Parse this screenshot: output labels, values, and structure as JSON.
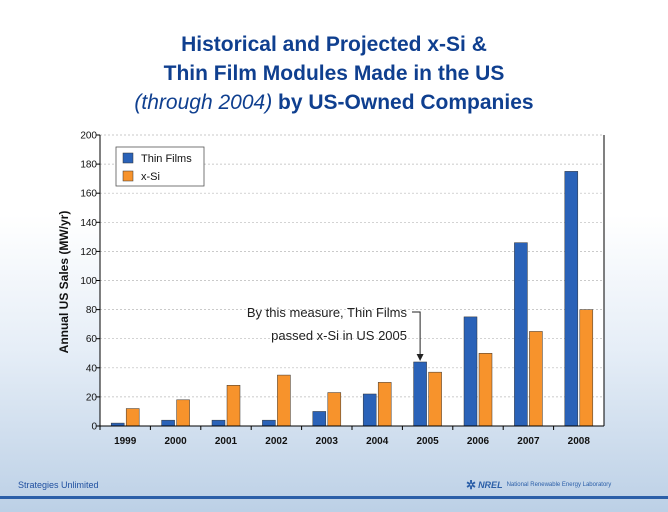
{
  "title": {
    "line1": "Historical and Projected x-Si &",
    "line2": "Thin Film Modules Made in the US",
    "line3_italic": "(through 2004)",
    "line3_rest": " by US-Owned Companies"
  },
  "chart_data": {
    "type": "bar",
    "categories": [
      "1999",
      "2000",
      "2001",
      "2002",
      "2003",
      "2004",
      "2005",
      "2006",
      "2007",
      "2008"
    ],
    "series": [
      {
        "name": "Thin Films",
        "color": "#2a62b8",
        "values": [
          2,
          4,
          4,
          4,
          10,
          22,
          44,
          75,
          126,
          175
        ]
      },
      {
        "name": "x-Si",
        "color": "#f7932c",
        "values": [
          12,
          18,
          28,
          35,
          23,
          30,
          37,
          50,
          65,
          80
        ]
      }
    ],
    "ylabel": "Annual US Sales (MW/yr)",
    "xlabel": "",
    "ylim": [
      0,
      200
    ],
    "yticks": [
      "0",
      "20",
      "40",
      "60",
      "80",
      "100",
      "120",
      "140",
      "160",
      "180",
      "200"
    ],
    "grid": true,
    "legend": "top-left",
    "annotation": {
      "line1": "By this measure, Thin Films",
      "line2": "passed x-Si in US 2005",
      "target_category": "2005"
    }
  },
  "footer": {
    "left": "Strategies Unlimited",
    "logo_mark": "✲",
    "logo_word": "NREL",
    "logo_lab": "National Renewable Energy Laboratory"
  }
}
